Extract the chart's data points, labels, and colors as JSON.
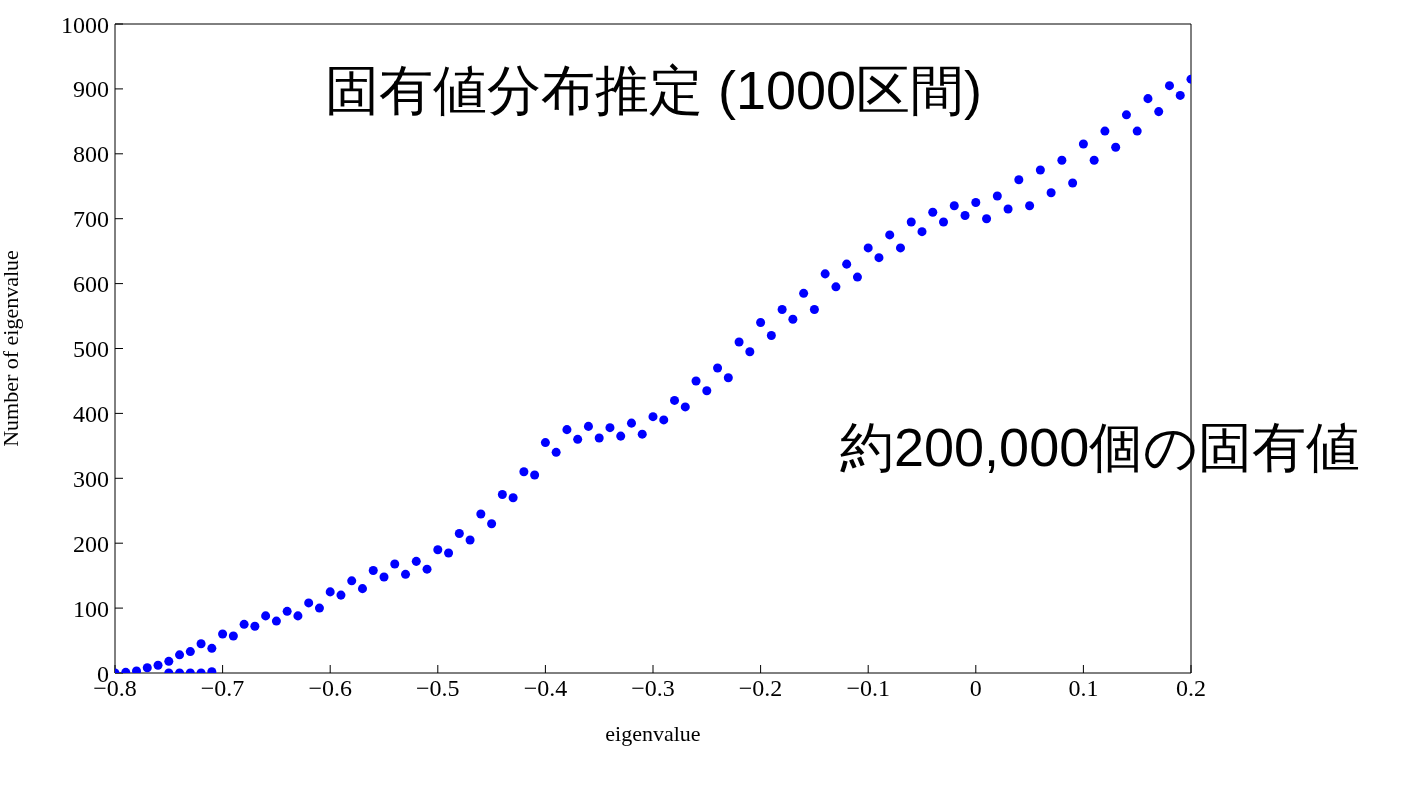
{
  "chart_data": {
    "type": "scatter",
    "title": "固有値分布推定 (1000区間)",
    "xlabel": "eigenvalue",
    "ylabel": "Number of eigenvalue",
    "annotations": [
      "約200,000個の固有値"
    ],
    "xlim": [
      -0.8,
      0.2
    ],
    "xticks": [
      {
        "value": -0.8,
        "label": "−0.8"
      },
      {
        "value": -0.7,
        "label": "−0.7"
      },
      {
        "value": -0.6,
        "label": "−0.6"
      },
      {
        "value": -0.5,
        "label": "−0.5"
      },
      {
        "value": -0.4,
        "label": "−0.4"
      },
      {
        "value": -0.3,
        "label": "−0.3"
      },
      {
        "value": -0.2,
        "label": "−0.2"
      },
      {
        "value": -0.1,
        "label": "−0.1"
      },
      0,
      0.1,
      0.2
    ],
    "ylim": [
      0,
      1000
    ],
    "yticks": [
      0,
      100,
      200,
      300,
      400,
      500,
      600,
      700,
      800,
      900,
      1000
    ],
    "grid": false,
    "marker": "circle",
    "series": [
      {
        "color": "#0000ff",
        "x": [
          -0.8,
          -0.79,
          -0.78,
          -0.77,
          -0.76,
          -0.75,
          -0.74,
          -0.73,
          -0.72,
          -0.71,
          -0.7,
          -0.69,
          -0.68,
          -0.67,
          -0.66,
          -0.65,
          -0.64,
          -0.63,
          -0.62,
          -0.61,
          -0.6,
          -0.59,
          -0.58,
          -0.57,
          -0.56,
          -0.55,
          -0.54,
          -0.53,
          -0.52,
          -0.51,
          -0.5,
          -0.49,
          -0.48,
          -0.47,
          -0.46,
          -0.45,
          -0.44,
          -0.43,
          -0.42,
          -0.41,
          -0.4,
          -0.39,
          -0.38,
          -0.37,
          -0.36,
          -0.35,
          -0.34,
          -0.33,
          -0.32,
          -0.31,
          -0.3,
          -0.29,
          -0.28,
          -0.27,
          -0.26,
          -0.25,
          -0.24,
          -0.23,
          -0.22,
          -0.21,
          -0.2,
          -0.19,
          -0.18,
          -0.17,
          -0.16,
          -0.15,
          -0.14,
          -0.13,
          -0.12,
          -0.11,
          -0.1,
          -0.09,
          -0.08,
          -0.07,
          -0.06,
          -0.05,
          -0.04,
          -0.03,
          -0.02,
          -0.01,
          0,
          0.01,
          0.02,
          0.03,
          0.04,
          0.05,
          0.06,
          0.07,
          0.08,
          0.09,
          0.1,
          0.11,
          0.12,
          0.13,
          0.14,
          0.15,
          0.16,
          0.17,
          0.18,
          0.19,
          0.2,
          -0.75,
          -0.74,
          -0.73,
          -0.72,
          -0.71
        ],
        "values": [
          0,
          1,
          3,
          8,
          12,
          18,
          28,
          33,
          45,
          38,
          60,
          57,
          75,
          72,
          88,
          80,
          95,
          88,
          108,
          100,
          125,
          120,
          142,
          130,
          158,
          148,
          168,
          152,
          172,
          160,
          190,
          185,
          215,
          205,
          245,
          230,
          275,
          270,
          310,
          305,
          355,
          340,
          375,
          360,
          380,
          362,
          378,
          365,
          385,
          368,
          395,
          390,
          420,
          410,
          450,
          435,
          470,
          455,
          510,
          495,
          540,
          520,
          560,
          545,
          585,
          560,
          615,
          595,
          630,
          610,
          655,
          640,
          675,
          655,
          695,
          680,
          710,
          695,
          720,
          705,
          725,
          700,
          735,
          715,
          760,
          720,
          775,
          740,
          790,
          755,
          815,
          790,
          835,
          810,
          860,
          835,
          885,
          865,
          905,
          890,
          915,
          0,
          0,
          0,
          0,
          2
        ]
      }
    ]
  }
}
